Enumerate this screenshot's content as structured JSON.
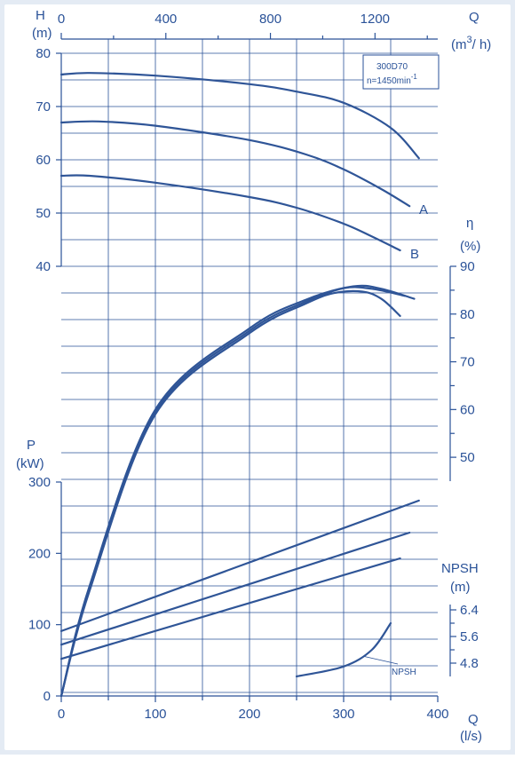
{
  "colors": {
    "background": "#e4ebf4",
    "panel": "#ffffff",
    "ink": "#2a5298",
    "curve": "#2f5597"
  },
  "chart_data": {
    "type": "line",
    "model": "300D70",
    "speed": "n=1450min",
    "speed_exp": "-1",
    "grid": true,
    "axes": {
      "q_ls": {
        "label": "Q",
        "unit": "(l/s)",
        "range": [
          0,
          400
        ],
        "ticks": [
          "0",
          "100",
          "200",
          "300",
          "400"
        ]
      },
      "q_m3h": {
        "label": "Q",
        "unit": "(m",
        "unit_exp": "3",
        "unit_tail": "/ h)",
        "range": [
          0,
          1440
        ],
        "ticks": [
          "0",
          "400",
          "800",
          "1200"
        ]
      },
      "head": {
        "label": "H",
        "unit": "(m)",
        "range": [
          40,
          80
        ],
        "ticks": [
          "40",
          "50",
          "60",
          "70",
          "80"
        ]
      },
      "eff": {
        "label": "η",
        "unit": "(%)",
        "range": [
          45,
          90
        ],
        "ticks": [
          "50",
          "60",
          "70",
          "80",
          "90"
        ]
      },
      "power": {
        "label": "P",
        "unit": "(kW)",
        "range": [
          0,
          300
        ],
        "ticks": [
          "0",
          "100",
          "200",
          "300"
        ]
      },
      "npsh": {
        "label": "NPSH",
        "unit": "(m)",
        "range": [
          4.4,
          6.4
        ],
        "ticks": [
          "4.8",
          "5.6",
          "6.4"
        ]
      }
    },
    "head_curves": [
      {
        "label": "",
        "points": [
          [
            0,
            76.0
          ],
          [
            30,
            76.3
          ],
          [
            100,
            75.8
          ],
          [
            200,
            74.2
          ],
          [
            250,
            72.8
          ],
          [
            300,
            70.7
          ],
          [
            350,
            66.0
          ],
          [
            380,
            60.3
          ]
        ]
      },
      {
        "label": "A",
        "points": [
          [
            0,
            67.0
          ],
          [
            40,
            67.2
          ],
          [
            100,
            66.4
          ],
          [
            200,
            63.7
          ],
          [
            260,
            61.0
          ],
          [
            300,
            58.2
          ],
          [
            340,
            54.5
          ],
          [
            370,
            51.3
          ]
        ]
      },
      {
        "label": "B",
        "points": [
          [
            0,
            57.0
          ],
          [
            30,
            57.0
          ],
          [
            100,
            55.7
          ],
          [
            200,
            53.0
          ],
          [
            250,
            51.0
          ],
          [
            300,
            48.0
          ],
          [
            330,
            45.6
          ],
          [
            360,
            43.0
          ]
        ]
      }
    ],
    "efficiency_curves": [
      {
        "points": [
          [
            30,
            23.0
          ],
          [
            100,
            60.0
          ],
          [
            200,
            77.0
          ],
          [
            260,
            83.0
          ],
          [
            310,
            85.8
          ],
          [
            340,
            85.3
          ],
          [
            375,
            83.2
          ]
        ]
      },
      {
        "points": [
          [
            30,
            22.5
          ],
          [
            100,
            59.5
          ],
          [
            200,
            76.5
          ],
          [
            260,
            82.6
          ],
          [
            300,
            85.4
          ],
          [
            330,
            85.3
          ],
          [
            365,
            83.8
          ]
        ]
      },
      {
        "points": [
          [
            30,
            22.0
          ],
          [
            100,
            59.0
          ],
          [
            200,
            76.0
          ],
          [
            260,
            82.2
          ],
          [
            290,
            84.4
          ],
          [
            320,
            84.7
          ],
          [
            340,
            83.2
          ],
          [
            360,
            79.6
          ]
        ]
      }
    ],
    "power_curves": [
      {
        "points": [
          [
            0,
            91
          ],
          [
            380,
            274
          ]
        ]
      },
      {
        "points": [
          [
            0,
            72
          ],
          [
            370,
            229
          ]
        ]
      },
      {
        "points": [
          [
            0,
            52
          ],
          [
            360,
            193
          ]
        ]
      }
    ],
    "npsh_curve": {
      "label": "NPSH",
      "points": [
        [
          250,
          4.4
        ],
        [
          300,
          4.7
        ],
        [
          330,
          5.2
        ],
        [
          350,
          6.0
        ]
      ]
    }
  }
}
